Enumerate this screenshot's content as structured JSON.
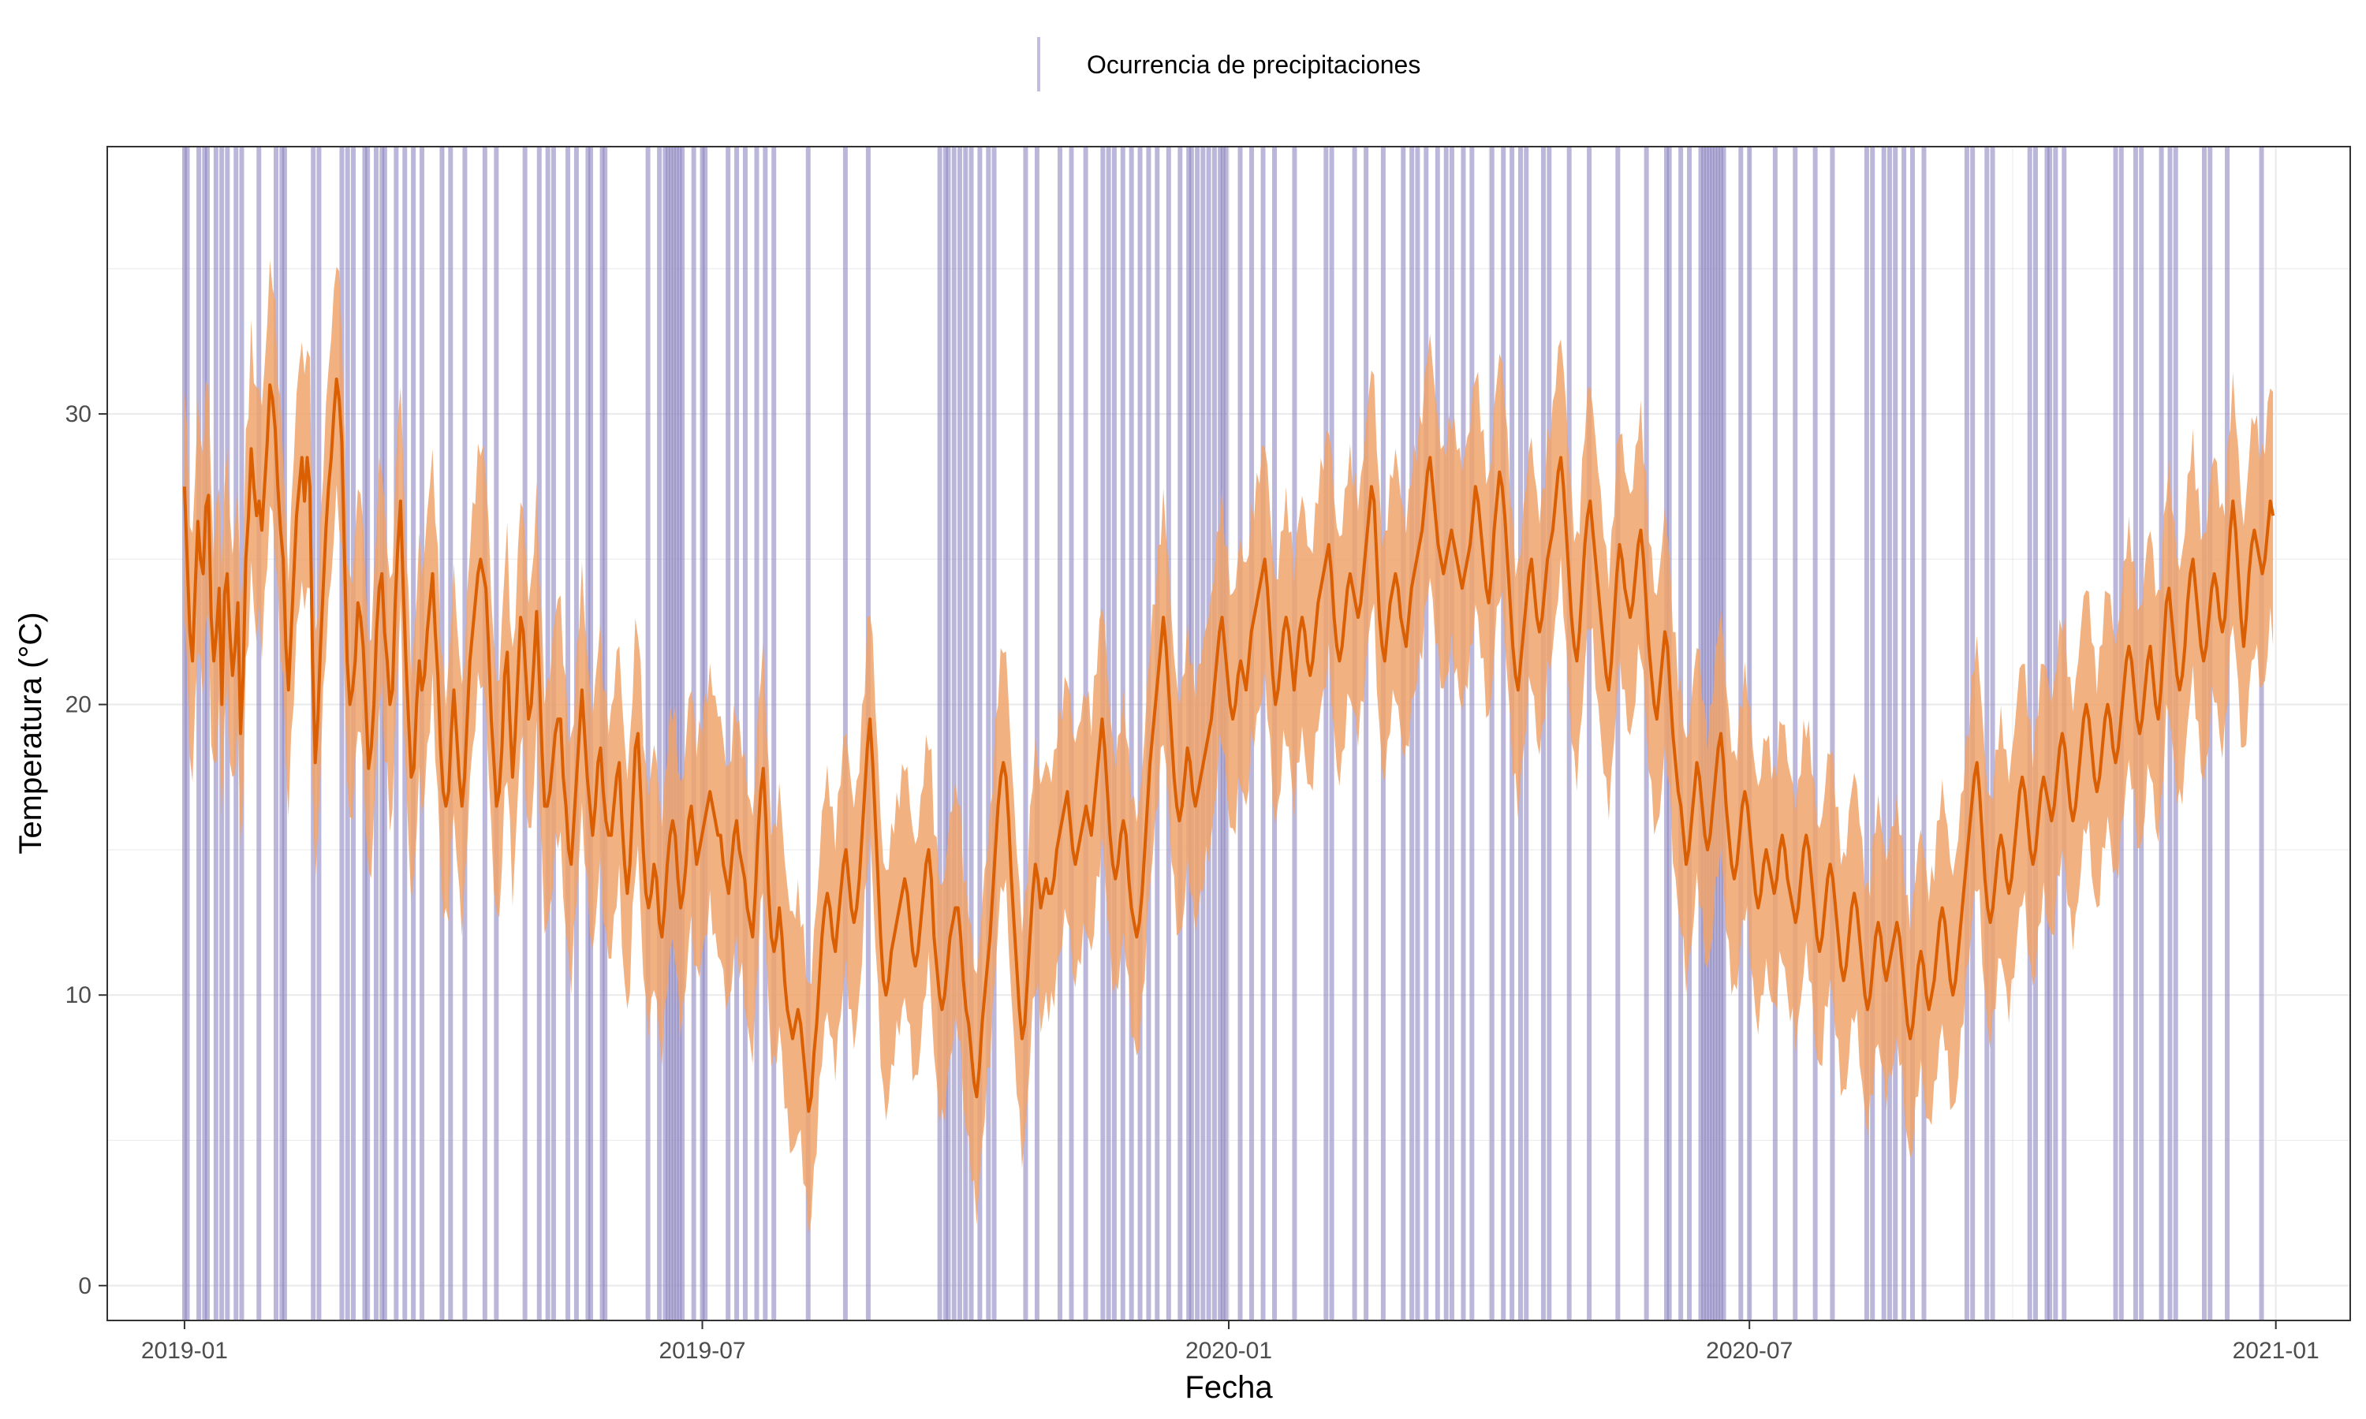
{
  "chart_data": {
    "type": "line",
    "title": "",
    "xlabel": "Fecha",
    "ylabel": "Temperatura (°C)",
    "x_range": [
      "2018-12-05",
      "2021-01-27"
    ],
    "ylim": [
      -1.2,
      39.2
    ],
    "y_ticks": [
      0,
      10,
      20,
      30
    ],
    "x_ticks": [
      {
        "date": "2019-01-01",
        "label": "2019-01"
      },
      {
        "date": "2019-07-01",
        "label": "2019-07"
      },
      {
        "date": "2020-01-01",
        "label": "2020-01"
      },
      {
        "date": "2020-07-01",
        "label": "2020-07"
      },
      {
        "date": "2021-01-01",
        "label": "2021-01"
      }
    ],
    "grid": true,
    "legend": {
      "position": "top",
      "entries": [
        {
          "label": "Ocurrencia de precipitaciones",
          "color": "#8d87c2"
        }
      ]
    },
    "colors": {
      "line": "#d95f02",
      "band": "#f0a36b",
      "rain": "#8d87c2"
    },
    "series": [
      {
        "type": "line",
        "x_start": "2019-01-01",
        "x_end": "2020-12-31",
        "values": [
          27.5,
          25.0,
          22.5,
          21.5,
          24.0,
          26.3,
          25.0,
          24.5,
          26.8,
          27.2,
          23.0,
          21.5,
          22.5,
          24.0,
          20.0,
          23.8,
          24.5,
          22.5,
          21.0,
          22.0,
          23.5,
          19.0,
          21.0,
          25.0,
          26.5,
          28.8,
          27.5,
          26.5,
          27.0,
          26.0,
          27.5,
          29.0,
          31.0,
          30.5,
          29.5,
          27.5,
          26.0,
          25.0,
          22.0,
          20.5,
          22.5,
          24.5,
          26.5,
          27.5,
          28.5,
          27.0,
          28.5,
          27.5,
          21.5,
          18.0,
          19.5,
          22.0,
          24.0,
          26.0,
          27.5,
          28.5,
          30.0,
          31.2,
          30.5,
          29.0,
          25.0,
          21.5,
          20.0,
          20.5,
          21.5,
          23.5,
          23.0,
          22.0,
          20.0,
          17.8,
          18.5,
          20.0,
          22.5,
          24.0,
          24.5,
          22.5,
          21.5,
          20.0,
          20.5,
          23.5,
          25.5,
          27.0,
          24.0,
          21.5,
          19.5,
          17.5,
          17.8,
          20.0,
          21.5,
          20.5,
          21.0,
          22.5,
          23.5,
          24.5,
          22.5,
          21.0,
          18.5,
          17.0,
          16.5,
          17.0,
          19.0,
          20.5,
          19.0,
          17.5,
          16.5,
          17.5,
          19.5,
          21.5,
          22.5,
          23.5,
          24.5,
          25.0,
          24.5,
          24.0,
          22.0,
          19.5,
          18.0,
          16.5,
          17.0,
          18.5,
          21.0,
          21.8,
          19.5,
          17.5,
          19.0,
          21.0,
          23.0,
          22.5,
          21.0,
          19.5,
          20.0,
          21.5,
          23.2,
          21.0,
          18.5,
          16.5,
          16.5,
          17.0,
          18.0,
          19.0,
          19.5,
          19.5,
          17.5,
          16.5,
          15.0,
          14.5,
          16.0,
          17.5,
          19.0,
          20.5,
          19.0,
          17.5,
          16.5,
          15.5,
          16.5,
          18.0,
          18.5,
          17.0,
          16.0,
          15.5,
          15.5,
          16.5,
          17.5,
          18.0,
          16.0,
          14.5,
          13.5,
          14.5,
          16.5,
          18.5,
          19.0,
          17.0,
          15.0,
          13.5,
          13.0,
          13.5,
          14.5,
          14.0,
          12.5,
          12.0,
          13.0,
          14.5,
          15.5,
          16.0,
          15.5,
          14.0,
          13.0,
          13.5,
          14.5,
          16.0,
          16.5,
          15.5,
          14.5,
          15.0,
          15.5,
          16.0,
          16.5,
          17.0,
          16.5,
          16.0,
          15.5,
          15.5,
          14.5,
          14.0,
          13.5,
          14.5,
          15.5,
          16.0,
          15.0,
          14.5,
          14.0,
          13.0,
          12.5,
          12.0,
          13.5,
          15.5,
          17.0,
          17.8,
          16.0,
          13.5,
          12.0,
          11.5,
          12.0,
          13.0,
          12.0,
          10.5,
          9.5,
          9.0,
          8.5,
          9.0,
          9.5,
          9.0,
          8.0,
          7.0,
          6.0,
          6.5,
          8.0,
          9.0,
          10.5,
          12.0,
          13.0,
          13.5,
          13.0,
          12.0,
          11.5,
          12.5,
          13.5,
          14.5,
          15.0,
          14.0,
          13.0,
          12.5,
          13.0,
          14.0,
          15.5,
          17.0,
          18.5,
          19.5,
          18.0,
          16.0,
          14.0,
          12.0,
          10.5,
          10.0,
          10.5,
          11.5,
          12.0,
          12.5,
          13.0,
          13.5,
          14.0,
          13.5,
          12.5,
          11.5,
          11.0,
          11.5,
          12.5,
          13.5,
          14.5,
          15.0,
          14.0,
          12.0,
          11.0,
          10.0,
          9.5,
          10.0,
          11.0,
          12.0,
          12.5,
          13.0,
          13.0,
          12.0,
          10.5,
          9.5,
          9.0,
          8.0,
          7.0,
          6.5,
          7.5,
          9.0,
          10.0,
          11.0,
          12.0,
          13.5,
          15.0,
          16.5,
          17.5,
          18.0,
          17.5,
          16.0,
          14.0,
          12.5,
          11.0,
          9.5,
          8.5,
          9.0,
          10.5,
          12.0,
          13.5,
          14.5,
          14.0,
          13.0,
          13.5,
          14.0,
          13.5,
          13.5,
          14.0,
          15.0,
          15.5,
          16.0,
          16.5,
          17.0,
          16.0,
          15.0,
          14.5,
          15.0,
          15.5,
          16.0,
          16.5,
          16.0,
          15.5,
          16.5,
          17.5,
          18.5,
          19.5,
          18.5,
          17.0,
          15.5,
          14.5,
          14.0,
          14.5,
          15.5,
          16.0,
          15.5,
          14.0,
          13.0,
          12.5,
          12.0,
          12.5,
          13.5,
          15.0,
          16.5,
          18.0,
          19.0,
          20.0,
          21.0,
          22.0,
          23.0,
          22.0,
          20.5,
          19.0,
          17.5,
          16.5,
          16.0,
          16.5,
          17.5,
          18.5,
          18.0,
          17.0,
          16.5,
          17.0,
          17.5,
          18.0,
          18.5,
          19.0,
          19.5,
          20.5,
          21.5,
          22.5,
          23.0,
          22.0,
          21.0,
          20.0,
          19.5,
          20.0,
          21.0,
          21.5,
          21.0,
          20.5,
          21.5,
          22.5,
          23.0,
          23.5,
          24.0,
          24.5,
          25.0,
          24.0,
          22.5,
          21.0,
          20.0,
          20.5,
          21.5,
          22.5,
          23.0,
          22.5,
          21.5,
          20.5,
          21.5,
          22.5,
          23.0,
          22.5,
          21.5,
          21.0,
          21.5,
          22.5,
          23.5,
          24.0,
          24.5,
          25.0,
          25.5,
          24.5,
          23.0,
          22.0,
          21.5,
          22.0,
          23.0,
          24.0,
          24.5,
          24.0,
          23.5,
          23.0,
          23.5,
          24.5,
          25.5,
          26.5,
          27.5,
          27.0,
          25.0,
          23.0,
          22.0,
          21.5,
          22.5,
          23.5,
          24.0,
          24.5,
          24.0,
          23.0,
          22.5,
          22.0,
          23.0,
          24.0,
          24.5,
          25.0,
          25.5,
          26.0,
          27.0,
          28.0,
          28.5,
          27.5,
          26.5,
          25.5,
          25.0,
          24.5,
          25.0,
          25.5,
          26.0,
          25.5,
          25.0,
          24.5,
          24.0,
          24.5,
          25.0,
          25.5,
          26.5,
          27.5,
          27.0,
          26.0,
          25.0,
          24.0,
          23.5,
          24.5,
          26.0,
          27.0,
          28.0,
          27.5,
          26.5,
          25.0,
          23.5,
          22.0,
          21.0,
          20.5,
          21.5,
          22.5,
          23.5,
          24.5,
          25.0,
          24.0,
          23.0,
          22.5,
          23.0,
          24.0,
          25.0,
          25.5,
          26.0,
          27.0,
          28.0,
          28.5,
          27.5,
          26.0,
          24.5,
          23.0,
          22.0,
          21.5,
          22.5,
          24.0,
          25.5,
          26.5,
          27.0,
          26.0,
          25.0,
          24.0,
          23.0,
          22.0,
          21.0,
          20.5,
          21.5,
          23.0,
          24.5,
          25.5,
          25.0,
          24.0,
          23.5,
          23.0,
          23.5,
          24.5,
          25.5,
          26.0,
          25.0,
          23.5,
          22.0,
          21.0,
          20.0,
          19.5,
          20.5,
          21.5,
          22.5,
          22.0,
          20.5,
          19.0,
          18.0,
          17.0,
          16.5,
          15.5,
          14.5,
          15.0,
          16.0,
          17.0,
          18.0,
          17.5,
          16.5,
          15.5,
          15.0,
          15.5,
          16.5,
          17.5,
          18.5,
          19.0,
          18.0,
          16.5,
          15.5,
          14.5,
          14.0,
          14.5,
          15.5,
          16.5,
          17.0,
          16.5,
          15.5,
          14.5,
          13.5,
          13.0,
          13.5,
          14.5,
          15.0,
          14.5,
          14.0,
          13.5,
          14.0,
          15.0,
          15.5,
          15.0,
          14.0,
          13.5,
          13.0,
          12.5,
          13.0,
          14.0,
          15.0,
          15.5,
          15.0,
          14.0,
          13.0,
          12.0,
          11.5,
          12.0,
          13.0,
          14.0,
          14.5,
          14.0,
          13.0,
          12.0,
          11.0,
          10.5,
          11.0,
          12.0,
          13.0,
          13.5,
          13.0,
          12.0,
          11.0,
          10.0,
          9.5,
          10.0,
          11.0,
          12.0,
          12.5,
          12.0,
          11.0,
          10.5,
          11.0,
          11.5,
          12.0,
          12.5,
          12.0,
          11.0,
          10.0,
          9.0,
          8.5,
          9.0,
          10.0,
          11.0,
          11.5,
          11.0,
          10.0,
          9.5,
          10.0,
          10.5,
          11.5,
          12.5,
          13.0,
          12.5,
          11.5,
          10.5,
          10.0,
          10.5,
          11.5,
          12.5,
          13.5,
          14.5,
          15.5,
          16.5,
          17.5,
          18.0,
          17.0,
          15.5,
          14.0,
          13.0,
          12.5,
          13.0,
          14.0,
          15.0,
          15.5,
          15.0,
          14.0,
          13.5,
          14.0,
          15.0,
          16.0,
          17.0,
          17.5,
          17.0,
          16.0,
          15.0,
          14.5,
          15.0,
          16.0,
          17.0,
          17.5,
          17.0,
          16.5,
          16.0,
          16.5,
          17.5,
          18.5,
          19.0,
          18.5,
          17.5,
          16.5,
          16.0,
          16.5,
          17.5,
          18.5,
          19.5,
          20.0,
          19.5,
          18.5,
          17.5,
          17.0,
          17.5,
          18.5,
          19.5,
          20.0,
          19.5,
          18.5,
          18.0,
          18.5,
          19.5,
          20.5,
          21.5,
          22.0,
          21.5,
          20.5,
          19.5,
          19.0,
          19.5,
          20.5,
          21.5,
          22.0,
          21.0,
          20.0,
          19.5,
          20.5,
          22.0,
          23.5,
          24.0,
          23.0,
          22.0,
          21.0,
          20.5,
          21.0,
          22.0,
          23.5,
          24.5,
          25.0,
          24.0,
          23.0,
          22.0,
          21.5,
          22.0,
          23.0,
          24.0,
          24.5,
          24.0,
          23.0,
          22.5,
          23.0,
          24.5,
          26.0,
          27.0,
          26.0,
          24.5,
          23.0,
          22.0,
          23.0,
          24.5,
          25.5,
          26.0,
          25.5,
          25.0,
          24.5,
          25.0,
          26.0,
          27.0,
          26.5
        ]
      },
      {
        "type": "band",
        "half_width": 3.9
      }
    ],
    "rain_events": [
      "2019-01-01",
      "2019-01-02",
      "2019-01-06",
      "2019-01-08",
      "2019-01-09",
      "2019-01-12",
      "2019-01-14",
      "2019-01-16",
      "2019-01-19",
      "2019-01-21",
      "2019-01-27",
      "2019-02-02",
      "2019-02-04",
      "2019-02-05",
      "2019-02-15",
      "2019-02-17",
      "2019-02-25",
      "2019-02-27",
      "2019-03-01",
      "2019-03-05",
      "2019-03-06",
      "2019-03-09",
      "2019-03-11",
      "2019-03-12",
      "2019-03-16",
      "2019-03-19",
      "2019-03-22",
      "2019-03-25",
      "2019-04-01",
      "2019-04-04",
      "2019-04-09",
      "2019-04-16",
      "2019-04-20",
      "2019-04-30",
      "2019-05-05",
      "2019-05-08",
      "2019-05-10",
      "2019-05-15",
      "2019-05-18",
      "2019-05-22",
      "2019-05-23",
      "2019-05-27",
      "2019-05-28",
      "2019-06-12",
      "2019-06-16",
      "2019-06-18",
      "2019-06-19",
      "2019-06-20",
      "2019-06-21",
      "2019-06-22",
      "2019-06-23",
      "2019-06-24",
      "2019-06-28",
      "2019-07-01",
      "2019-07-02",
      "2019-07-10",
      "2019-07-13",
      "2019-07-16",
      "2019-07-20",
      "2019-07-23",
      "2019-07-26",
      "2019-08-07",
      "2019-08-20",
      "2019-08-28",
      "2019-09-22",
      "2019-09-24",
      "2019-09-25",
      "2019-09-27",
      "2019-09-29",
      "2019-10-01",
      "2019-10-03",
      "2019-10-06",
      "2019-10-09",
      "2019-10-11",
      "2019-10-22",
      "2019-10-26",
      "2019-11-03",
      "2019-11-07",
      "2019-11-12",
      "2019-11-18",
      "2019-11-20",
      "2019-11-22",
      "2019-11-25",
      "2019-11-28",
      "2019-12-01",
      "2019-12-04",
      "2019-12-07",
      "2019-12-11",
      "2019-12-15",
      "2019-12-18",
      "2019-12-19",
      "2019-12-21",
      "2019-12-23",
      "2019-12-25",
      "2019-12-27",
      "2019-12-29",
      "2019-12-30",
      "2019-12-31",
      "2020-01-05",
      "2020-01-09",
      "2020-01-13",
      "2020-01-17",
      "2020-01-24",
      "2020-02-04",
      "2020-02-06",
      "2020-02-14",
      "2020-02-18",
      "2020-02-24",
      "2020-03-02",
      "2020-03-05",
      "2020-03-07",
      "2020-03-10",
      "2020-03-14",
      "2020-03-17",
      "2020-03-19",
      "2020-03-23",
      "2020-03-26",
      "2020-04-02",
      "2020-04-06",
      "2020-04-09",
      "2020-04-12",
      "2020-04-14",
      "2020-04-20",
      "2020-04-22",
      "2020-04-29",
      "2020-05-06",
      "2020-05-16",
      "2020-05-26",
      "2020-06-02",
      "2020-06-03",
      "2020-06-07",
      "2020-06-10",
      "2020-06-14",
      "2020-06-15",
      "2020-06-16",
      "2020-06-17",
      "2020-06-18",
      "2020-06-19",
      "2020-06-20",
      "2020-06-21",
      "2020-06-22",
      "2020-06-28",
      "2020-07-01",
      "2020-07-10",
      "2020-07-17",
      "2020-07-24",
      "2020-07-30",
      "2020-08-11",
      "2020-08-13",
      "2020-08-17",
      "2020-08-19",
      "2020-08-21",
      "2020-08-24",
      "2020-08-27",
      "2020-08-31",
      "2020-09-15",
      "2020-09-17",
      "2020-09-22",
      "2020-09-24",
      "2020-10-07",
      "2020-10-09",
      "2020-10-13",
      "2020-10-14",
      "2020-10-16",
      "2020-10-19",
      "2020-11-06",
      "2020-11-08",
      "2020-11-13",
      "2020-11-15",
      "2020-11-22",
      "2020-11-25",
      "2020-11-27",
      "2020-12-07",
      "2020-12-09",
      "2020-12-15",
      "2020-12-27"
    ]
  }
}
